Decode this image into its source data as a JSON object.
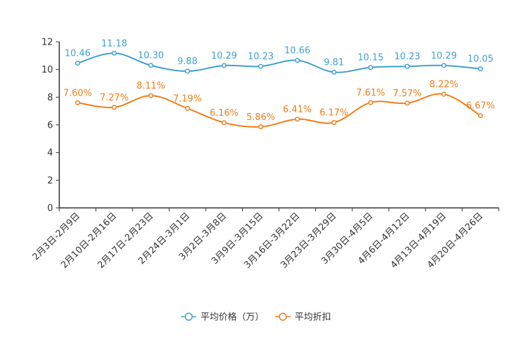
{
  "chart_data": {
    "type": "line",
    "title": "",
    "xlabel": "",
    "ylabel": "",
    "ylim": [
      0,
      12
    ],
    "yticks": [
      0,
      2,
      4,
      6,
      8,
      10,
      12
    ],
    "grid": false,
    "legend_position": "bottom-center",
    "categories": [
      "2月3日-2月9日",
      "2月10日-2月16日",
      "2月17日-2月23日",
      "2月24日-3月1日",
      "3月2日-3月8日",
      "3月9日-3月15日",
      "3月16日-3月22日",
      "3月23日-3月29日",
      "3月30日-4月5日",
      "4月6日-4月12日",
      "4月13日-4月19日",
      "4月20日-4月26日"
    ],
    "series": [
      {
        "name": "平均价格（万）",
        "color": "#3fa1cf",
        "values": [
          10.46,
          11.18,
          10.3,
          9.88,
          10.29,
          10.23,
          10.66,
          9.81,
          10.15,
          10.23,
          10.29,
          10.05
        ],
        "labels": [
          "10.46",
          "11.18",
          "10.30",
          "9.88",
          "10.29",
          "10.23",
          "10.66",
          "9.81",
          "10.15",
          "10.23",
          "10.29",
          "10.05"
        ]
      },
      {
        "name": "平均折扣",
        "color": "#f07d1a",
        "values": [
          7.6,
          7.27,
          8.11,
          7.19,
          6.16,
          5.86,
          6.41,
          6.17,
          7.61,
          7.57,
          8.22,
          6.67
        ],
        "labels": [
          "7.60%",
          "7.27%",
          "8.11%",
          "7.19%",
          "6.16%",
          "5.86%",
          "6.41%",
          "6.17%",
          "7.61%",
          "7.57%",
          "8.22%",
          "6.67%"
        ]
      }
    ]
  }
}
